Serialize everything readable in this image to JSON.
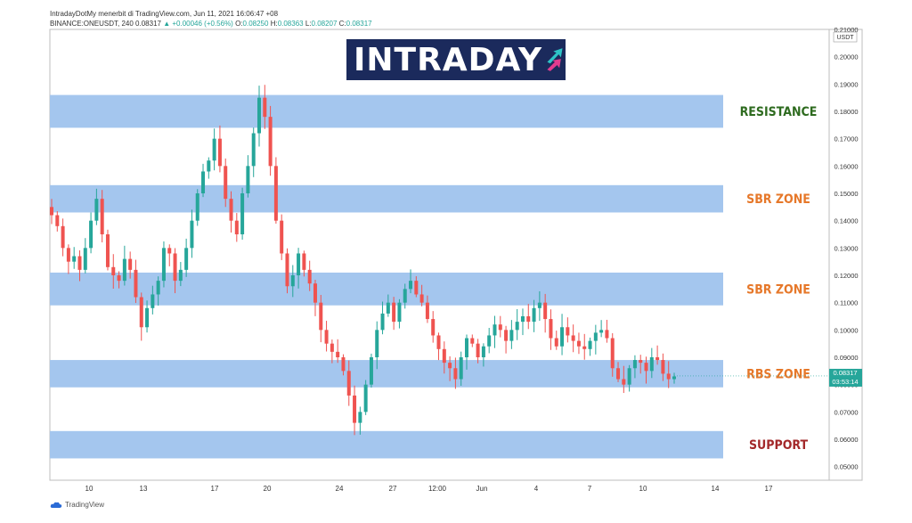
{
  "header": {
    "line1": "IntradayDotMy menerbit di TradingView.com, Jun 11, 2021 16:06:47 +08",
    "symbol": "BINANCE:ONEUSDT, 240",
    "last": "0.08317",
    "change": "▲ +0.00046 (+0.56%)",
    "o_label": "O:",
    "o": "0.08250",
    "h_label": "H:",
    "h": "0.08363",
    "l_label": "L:",
    "l": "0.08207",
    "c_label": "C:",
    "c": "0.08317"
  },
  "logo": {
    "text": "INTRADAY"
  },
  "footer": {
    "brand": "TradingView"
  },
  "colors": {
    "up": "#26a69a",
    "down": "#ef5350",
    "zone": "#a4c6ee",
    "resistance": "#2e6b1f",
    "sbr": "#e6782a",
    "support": "#a3282a"
  },
  "chart_data": {
    "type": "candlestick",
    "currency_label": "USDT",
    "ylim": [
      0.045,
      0.21
    ],
    "y_ticks": [
      "0.21000",
      "0.20000",
      "0.19000",
      "0.18000",
      "0.17000",
      "0.16000",
      "0.15000",
      "0.14000",
      "0.13000",
      "0.12000",
      "0.11000",
      "0.10000",
      "0.09000",
      "0.08000",
      "0.07000",
      "0.06000",
      "0.05000"
    ],
    "x_ticks": [
      "10",
      "13",
      "17",
      "20",
      "24",
      "27",
      "12:00",
      "Jun",
      "4",
      "7",
      "10",
      "14",
      "17"
    ],
    "last_price": "0.08317",
    "countdown": "03:53:14",
    "zones": [
      {
        "label": "RESISTANCE",
        "low": 0.174,
        "high": 0.186,
        "color": "resistance"
      },
      {
        "label": "SBR ZONE",
        "low": 0.143,
        "high": 0.153,
        "color": "sbr"
      },
      {
        "label": "SBR ZONE",
        "low": 0.109,
        "high": 0.121,
        "color": "sbr"
      },
      {
        "label": "RBS ZONE",
        "low": 0.079,
        "high": 0.089,
        "color": "sbr"
      },
      {
        "label": "SUPPORT",
        "low": 0.053,
        "high": 0.063,
        "color": "support"
      }
    ],
    "close_path": [
      0.142,
      0.138,
      0.13,
      0.125,
      0.127,
      0.122,
      0.13,
      0.14,
      0.148,
      0.135,
      0.123,
      0.12,
      0.118,
      0.126,
      0.122,
      0.112,
      0.101,
      0.108,
      0.113,
      0.118,
      0.13,
      0.128,
      0.118,
      0.122,
      0.13,
      0.14,
      0.15,
      0.158,
      0.162,
      0.17,
      0.16,
      0.148,
      0.14,
      0.135,
      0.15,
      0.16,
      0.172,
      0.185,
      0.178,
      0.16,
      0.14,
      0.128,
      0.116,
      0.12,
      0.128,
      0.122,
      0.117,
      0.11,
      0.1,
      0.095,
      0.092,
      0.09,
      0.085,
      0.076,
      0.066,
      0.07,
      0.08,
      0.09,
      0.1,
      0.106,
      0.11,
      0.103,
      0.11,
      0.115,
      0.118,
      0.113,
      0.11,
      0.104,
      0.098,
      0.093,
      0.088,
      0.086,
      0.082,
      0.09,
      0.097,
      0.095,
      0.09,
      0.094,
      0.098,
      0.102,
      0.1,
      0.096,
      0.1,
      0.103,
      0.105,
      0.103,
      0.108,
      0.11,
      0.104,
      0.097,
      0.094,
      0.101,
      0.098,
      0.096,
      0.094,
      0.093,
      0.096,
      0.099,
      0.1,
      0.097,
      0.086,
      0.082,
      0.08,
      0.086,
      0.089,
      0.088,
      0.085,
      0.09,
      0.089,
      0.084,
      0.082,
      0.083
    ]
  }
}
